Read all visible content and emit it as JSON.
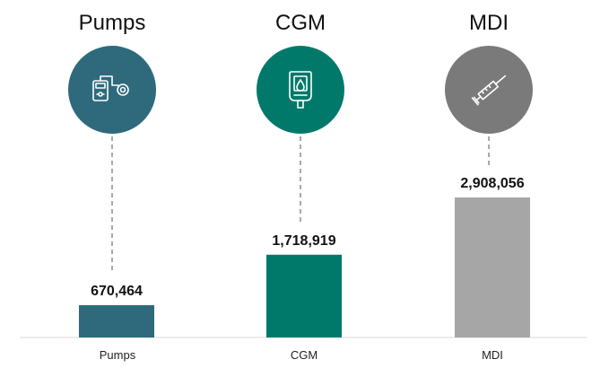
{
  "chart_data": {
    "type": "bar",
    "title": "",
    "xlabel": "",
    "ylabel": "",
    "categories": [
      "Pumps",
      "CGM",
      "MDI"
    ],
    "values": [
      670464,
      1718919,
      2908056
    ],
    "value_labels": [
      "670,464",
      "1,718,919",
      "2,908,056"
    ],
    "group_titles": [
      "Pumps",
      "CGM",
      "MDI"
    ],
    "ylim": [
      0,
      2908056
    ],
    "grid": false,
    "legend": "none",
    "colors": [
      "#2e6a7c",
      "#00796b",
      "#a6a6a6"
    ],
    "circle_colors": [
      "#2e6a7c",
      "#00796b",
      "#7a7a7a"
    ],
    "icons": [
      "insulin-pump-icon",
      "cgm-device-icon",
      "syringe-icon"
    ]
  }
}
